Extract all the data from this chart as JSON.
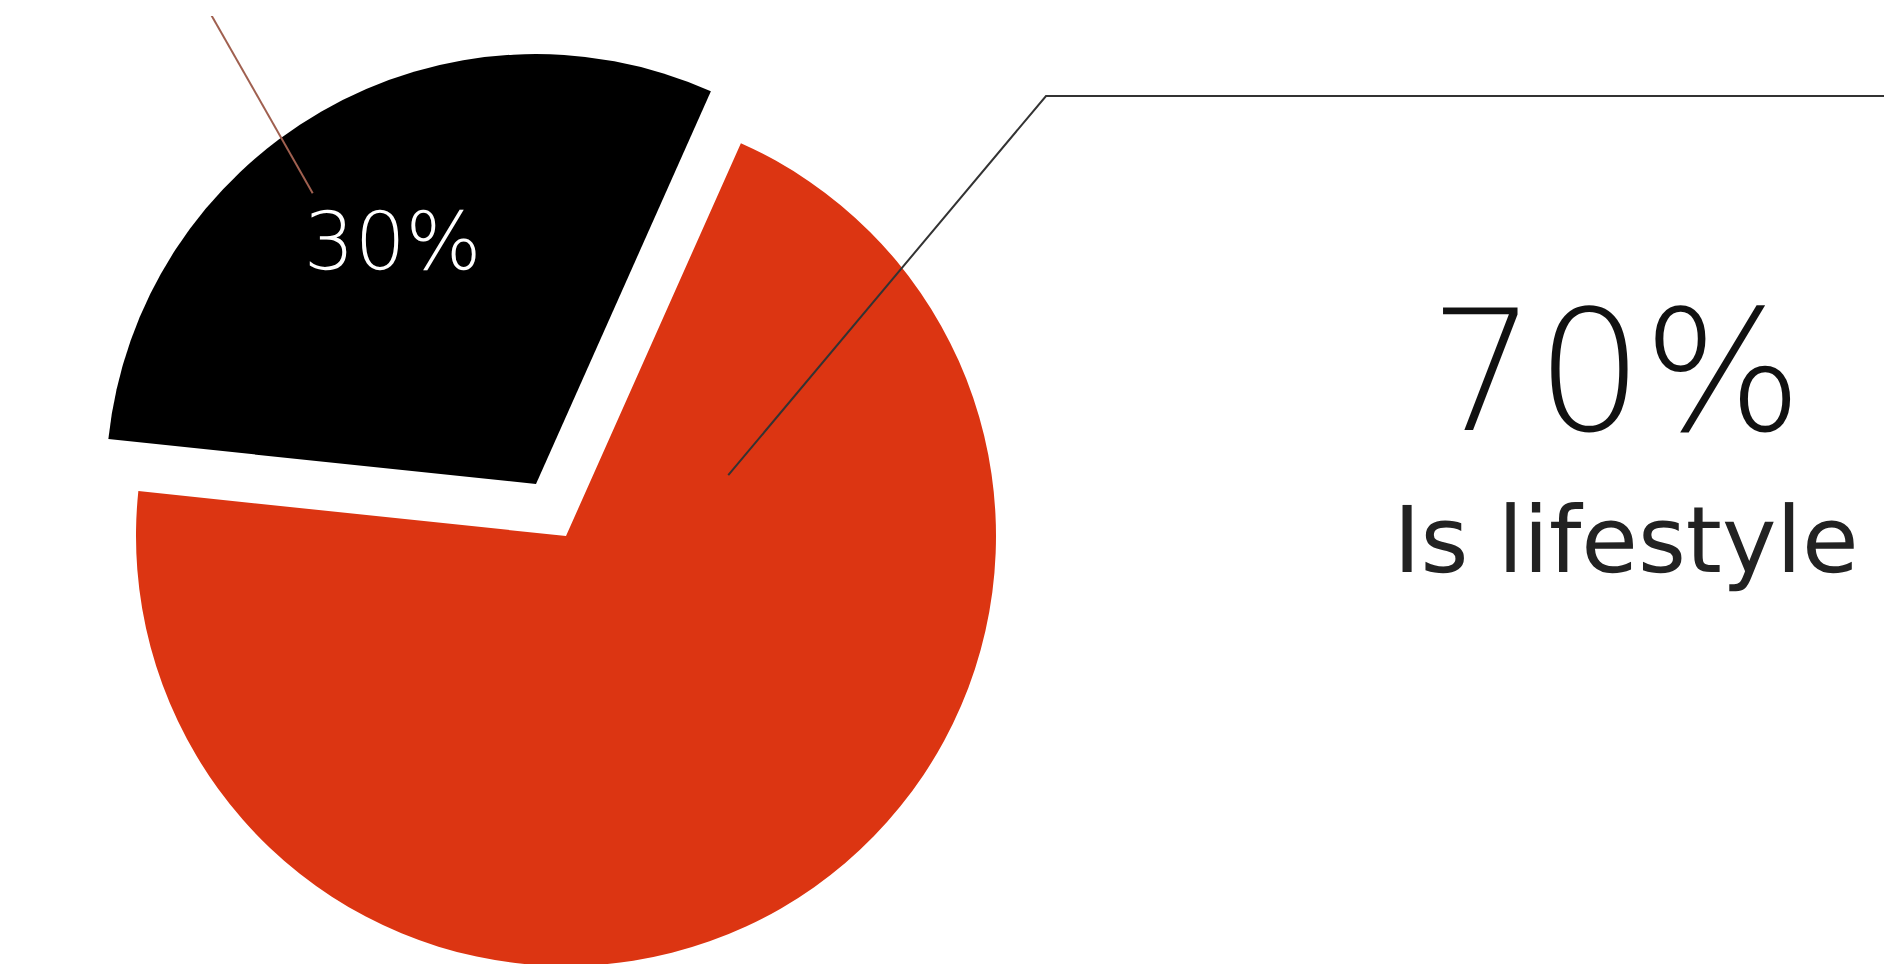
{
  "chart_data": {
    "type": "pie",
    "categories": [
      null,
      "Is lifestyle"
    ],
    "values": [
      30,
      70
    ],
    "colors": [
      "#000000",
      "#dc3512"
    ],
    "value_labels": [
      "30%",
      "70%"
    ],
    "legend": false
  }
}
